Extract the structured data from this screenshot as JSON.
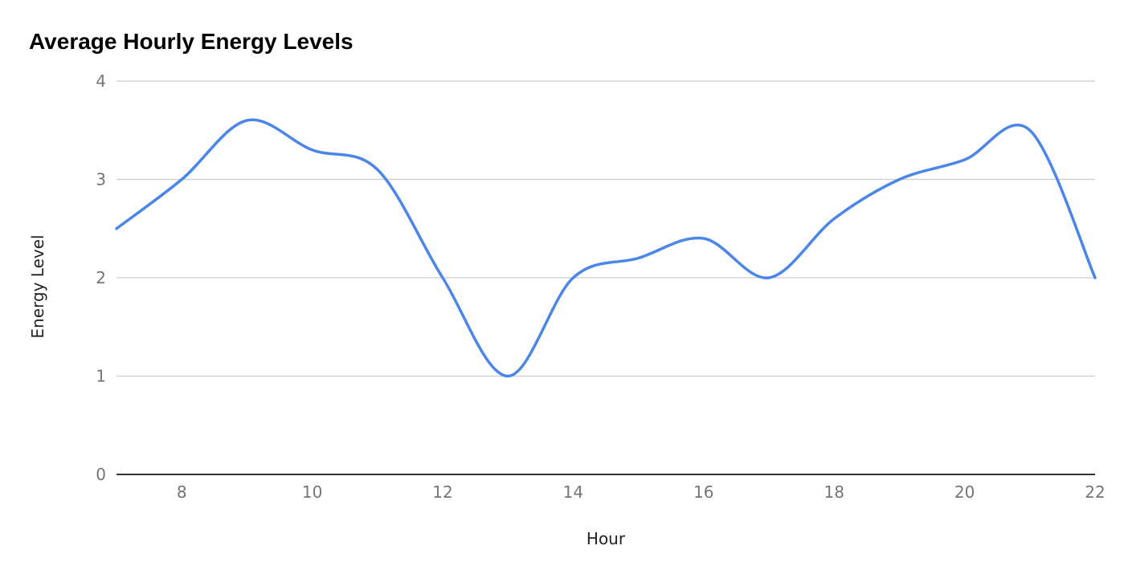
{
  "chart_data": {
    "type": "line",
    "title": "Average Hourly Energy Levels",
    "xlabel": "Hour",
    "ylabel": "Energy Level",
    "xlim": [
      7,
      22
    ],
    "ylim": [
      0,
      4
    ],
    "x_ticks": [
      8,
      10,
      12,
      14,
      16,
      18,
      20,
      22
    ],
    "y_ticks": [
      0,
      1,
      2,
      3,
      4
    ],
    "grid": true,
    "legend": "none",
    "smooth": true,
    "series": [
      {
        "color": "#4a86e8",
        "points": [
          {
            "x": 7,
            "y": 2.5
          },
          {
            "x": 8,
            "y": 3.0
          },
          {
            "x": 9,
            "y": 3.6
          },
          {
            "x": 10,
            "y": 3.3
          },
          {
            "x": 11,
            "y": 3.1
          },
          {
            "x": 12,
            "y": 2.0
          },
          {
            "x": 13,
            "y": 1.0
          },
          {
            "x": 14,
            "y": 2.0
          },
          {
            "x": 15,
            "y": 2.2
          },
          {
            "x": 16,
            "y": 2.4
          },
          {
            "x": 17,
            "y": 2.0
          },
          {
            "x": 18,
            "y": 2.6
          },
          {
            "x": 19,
            "y": 3.0
          },
          {
            "x": 20,
            "y": 3.2
          },
          {
            "x": 21,
            "y": 3.5
          },
          {
            "x": 22,
            "y": 2.0
          }
        ]
      }
    ],
    "colors": {
      "gridline": "#cccccc",
      "baseline": "#333333",
      "tick_label": "#757575",
      "title": "#000000"
    }
  }
}
